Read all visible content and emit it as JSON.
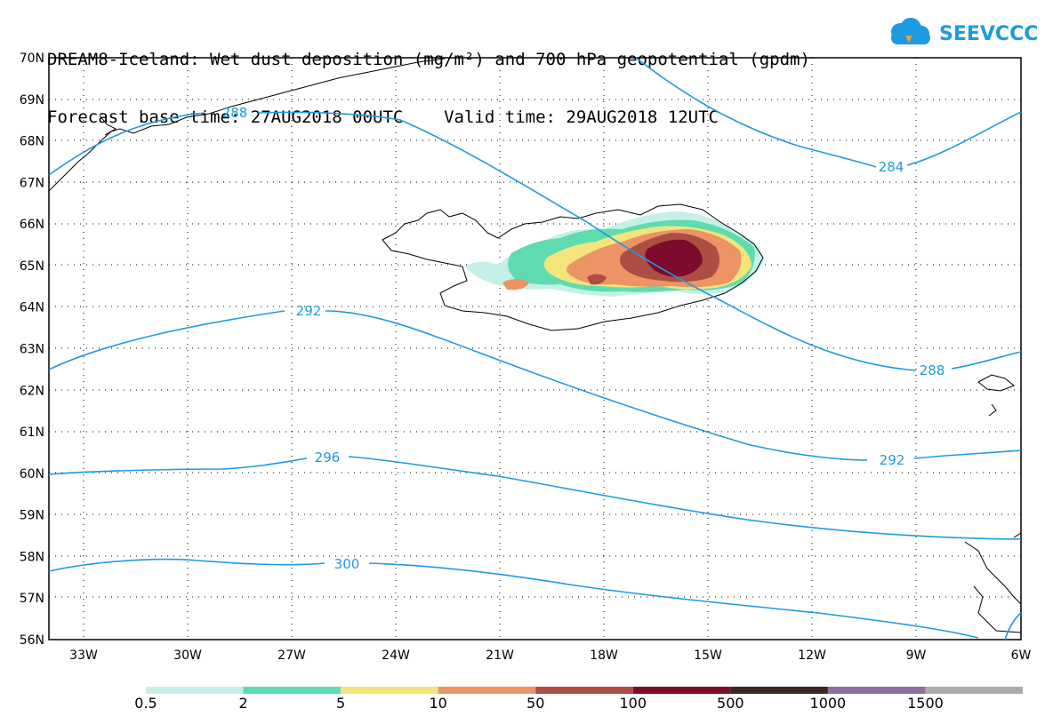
{
  "title": {
    "line1": "DREAM8-Iceland: Wet dust deposition (mg/m²) and 700 hPa geopotential (gpdm)",
    "line2": "Forecast base time: 27AUG2018 00UTC    Valid time: 29AUG2018 12UTC"
  },
  "logo": {
    "text": "SEEVCCC",
    "icon": "cloud-icon"
  },
  "axes": {
    "lat_labels": [
      "70N",
      "69N",
      "68N",
      "67N",
      "66N",
      "65N",
      "64N",
      "63N",
      "62N",
      "61N",
      "60N",
      "59N",
      "58N",
      "57N",
      "56N"
    ],
    "lon_labels": [
      "33W",
      "30W",
      "27W",
      "24W",
      "21W",
      "18W",
      "15W",
      "12W",
      "9W",
      "6W"
    ]
  },
  "contours": [
    {
      "value": "288",
      "label": "288"
    },
    {
      "value": "284",
      "label": "284"
    },
    {
      "value": "292",
      "label": "292"
    },
    {
      "value": "296",
      "label": "296"
    },
    {
      "value": "300",
      "label": "300"
    }
  ],
  "colorbar": {
    "colors": [
      "#c4f0e8",
      "#5edcb0",
      "#f4e47c",
      "#ec9466",
      "#ac4e44",
      "#7e0a2c",
      "#3c2822",
      "#8c6ea2",
      "#acacac"
    ],
    "labels": [
      "0.5",
      "2",
      "5",
      "10",
      "50",
      "100",
      "500",
      "1000",
      "1500"
    ]
  },
  "colors": {
    "contour": "#1e9ae0",
    "coast": "#000000"
  }
}
